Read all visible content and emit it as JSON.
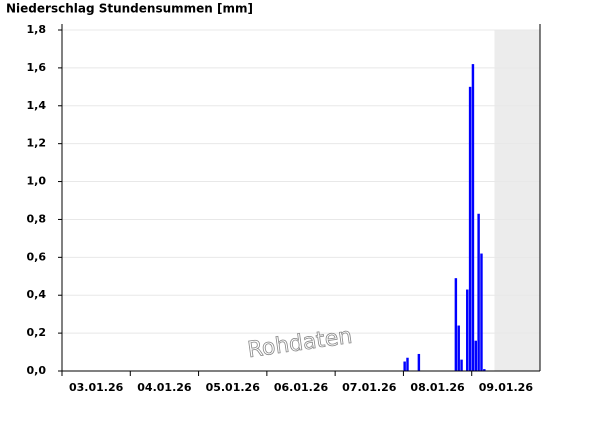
{
  "chart_data": {
    "type": "bar",
    "title": "Niederschlag Stundensummen [mm]",
    "watermark": "Rohdaten",
    "color": "#0000ff",
    "x": [
      120,
      121,
      125,
      138,
      139,
      140,
      142,
      143,
      144,
      145,
      146,
      147,
      148
    ],
    "values": [
      0.05,
      0.07,
      0.09,
      0.49,
      0.24,
      0.06,
      0.43,
      1.5,
      1.62,
      0.16,
      0.83,
      0.62,
      0.01
    ],
    "xlim": [
      0,
      168
    ],
    "xticks": [
      {
        "value": 0,
        "label": "03.01.26"
      },
      {
        "value": 24,
        "label": "04.01.26"
      },
      {
        "value": 48,
        "label": "05.01.26"
      },
      {
        "value": 72,
        "label": "06.01.26"
      },
      {
        "value": 96,
        "label": "07.01.26"
      },
      {
        "value": 120,
        "label": "08.01.26"
      },
      {
        "value": 144,
        "label": "09.01.26"
      }
    ],
    "ylim": [
      0,
      1.8
    ],
    "yticks": [
      {
        "value": 0,
        "label": "0,0"
      },
      {
        "value": 0.2,
        "label": "0,2"
      },
      {
        "value": 0.4,
        "label": "0,4"
      },
      {
        "value": 0.6,
        "label": "0,6"
      },
      {
        "value": 0.8,
        "label": "0,8"
      },
      {
        "value": 1.0,
        "label": "1,0"
      },
      {
        "value": 1.2,
        "label": "1,2"
      },
      {
        "value": 1.4,
        "label": "1,4"
      },
      {
        "value": 1.6,
        "label": "1,6"
      },
      {
        "value": 1.8,
        "label": "1,8"
      }
    ],
    "shade_xlim": [
      152,
      168
    ],
    "shade_color": "#ececec",
    "grid": true
  }
}
